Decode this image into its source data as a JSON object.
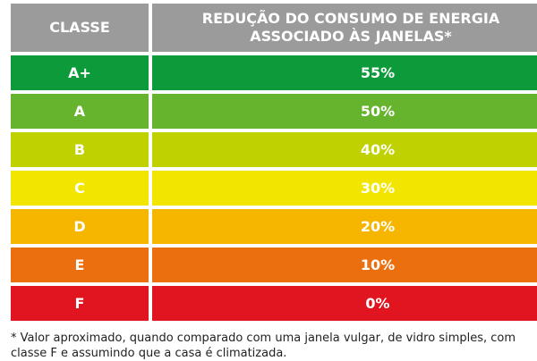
{
  "header": {
    "class_label": "CLASSE",
    "reduction_label": "REDUÇÃO DO CONSUMO DE ENERGIA ASSOCIADO ÀS JANELAS*"
  },
  "rows": [
    {
      "class": "A+",
      "value": "55%",
      "color": "#0d9a3a"
    },
    {
      "class": "A",
      "value": "50%",
      "color": "#66b32e"
    },
    {
      "class": "B",
      "value": "40%",
      "color": "#bfd100"
    },
    {
      "class": "C",
      "value": "30%",
      "color": "#f2e600"
    },
    {
      "class": "D",
      "value": "20%",
      "color": "#f6b600"
    },
    {
      "class": "E",
      "value": "10%",
      "color": "#ec6f0f"
    },
    {
      "class": "F",
      "value": "0%",
      "color": "#e1151f"
    }
  ],
  "footnote": "* Valor aproximado, quando comparado com uma janela vulgar, de vidro simples, com classe F e assumindo que a casa é climatizada."
}
